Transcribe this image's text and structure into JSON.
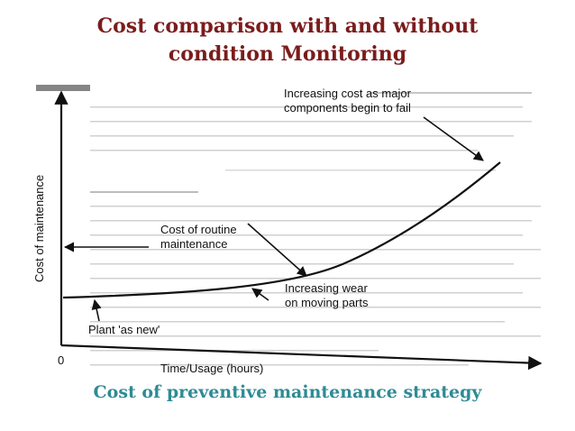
{
  "title": {
    "line1": "Cost comparison with and without",
    "line2": "condition Monitoring"
  },
  "diagram": {
    "y_axis_label": "Cost of maintenance",
    "x_axis_label": "Time/Usage (hours)",
    "origin_label": "0",
    "annotations": {
      "major_components": [
        "Increasing cost as major",
        "components begin to fail"
      ],
      "routine_cost": [
        "Cost of routine",
        "maintenance"
      ],
      "wear": [
        "Increasing wear",
        "on moving parts"
      ],
      "plant_new": "Plant 'as new'"
    }
  },
  "caption": "Cost of  preventive maintenance strategy"
}
